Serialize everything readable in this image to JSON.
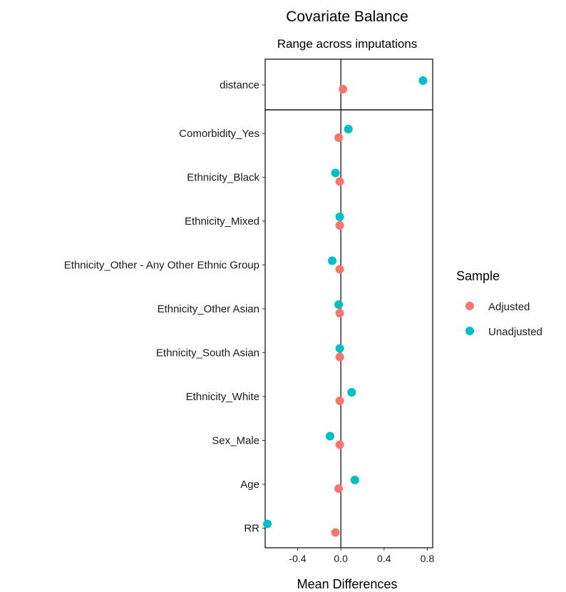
{
  "chart_data": {
    "type": "scatter",
    "title": "Covariate Balance",
    "subtitle": "Range across imputations",
    "xlabel": "Mean Differences",
    "ylabel": "",
    "xlim": [
      -0.7,
      0.85
    ],
    "xticks": [
      -0.4,
      0.0,
      0.4,
      0.8
    ],
    "xtick_labels": [
      "-0.4",
      "0.0",
      "0.4",
      "0.8"
    ],
    "reference_line_x": 0,
    "grid": false,
    "legend": {
      "title": "Sample",
      "placement": "right",
      "entries": [
        {
          "label": "Adjusted",
          "color": "#F8766D"
        },
        {
          "label": "Unadjusted",
          "color": "#00BFC4"
        }
      ]
    },
    "categories": [
      "distance",
      "Comorbidity_Yes",
      "Ethnicity_Black",
      "Ethnicity_Mixed",
      "Ethnicity_Other - Any Other Ethnic Group",
      "Ethnicity_Other Asian",
      "Ethnicity_South Asian",
      "Ethnicity_White",
      "Sex_Male",
      "Age",
      "RR"
    ],
    "series": [
      {
        "name": "Adjusted",
        "color": "#F8766D",
        "values": [
          0.02,
          -0.02,
          -0.01,
          -0.01,
          -0.01,
          -0.01,
          -0.01,
          -0.01,
          -0.01,
          -0.02,
          -0.05
        ]
      },
      {
        "name": "Unadjusted",
        "color": "#00BFC4",
        "values": [
          0.76,
          0.07,
          -0.05,
          -0.01,
          -0.08,
          -0.02,
          -0.01,
          0.1,
          -0.1,
          0.13,
          -0.68
        ]
      }
    ]
  }
}
